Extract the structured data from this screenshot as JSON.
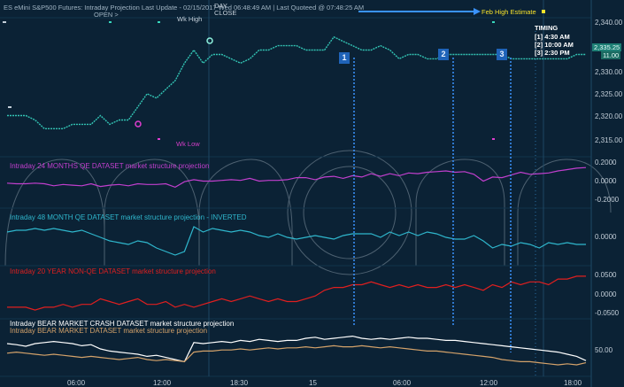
{
  "header": {
    "title": "ES eMini S&P500 Futures: Intraday Projection Last Update - 02/15/2017 Wed 06:48:49 AM | Last Quoteed @ 07:48:25 AM",
    "open_label": "OPEN >",
    "day_close_label": "DAY\nCLOSE",
    "wk_high_label": "Wk High",
    "wk_low_label": "Wk Low",
    "feb_high_label": "Feb High Estimate"
  },
  "timing": {
    "title": "TIMING",
    "items": [
      "[1] 4:30 AM",
      "[2] 10:00 AM",
      "[3] 2:30 PM"
    ]
  },
  "markers": [
    "1",
    "2",
    "3"
  ],
  "price_tags": {
    "last": "2,335.25",
    "change": "11.00"
  },
  "colors": {
    "background": "#0b2235",
    "price": "#33c4b4",
    "qe24": "#c23fce",
    "qe48": "#2fb7cd",
    "nonqe20": "#e01f1f",
    "bear_crash": "#ffffff",
    "bear_market": "#d4a26a",
    "timing_line": "#3a93ff",
    "arrow": "#3a93ff",
    "feb_high": "#f6e12a"
  },
  "chart_data": [
    {
      "type": "line",
      "title": "",
      "series": [
        {
          "values": [
            2321,
            2321,
            2321,
            2320,
            2318,
            2318,
            2318,
            2319,
            2319,
            2319,
            2321,
            2319,
            2320,
            2320,
            2323,
            2326,
            2325,
            2327,
            2329,
            2333,
            2336,
            2333,
            2335,
            2335,
            2334,
            2333,
            2334,
            2336,
            2336,
            2337,
            2337,
            2337,
            2336,
            2336,
            2336,
            2339,
            2338,
            2337,
            2336,
            2336,
            2337,
            2336,
            2334,
            2335,
            2335,
            2334,
            2334,
            2335,
            2335,
            2335,
            2335,
            2335,
            2335,
            2335,
            2334,
            2334,
            2334,
            2334,
            2334,
            2334,
            2334,
            2335,
            2335
          ]
        }
      ],
      "yticks": [
        "2,340.00",
        "2,335.00",
        "2,330.00",
        "2,325.00",
        "2,320.00",
        "2,315.00"
      ],
      "ylim": [
        2313,
        2343
      ]
    },
    {
      "type": "line",
      "title": "Intraday 24 MONTHS QE DATASET market structure projection",
      "series": [
        {
          "values": [
            -0.01,
            -0.02,
            -0.02,
            -0.01,
            -0.02,
            -0.05,
            -0.03,
            -0.04,
            -0.05,
            -0.02,
            -0.06,
            -0.04,
            -0.03,
            -0.05,
            -0.02,
            -0.03,
            -0.03,
            -0.02,
            -0.07,
            0.01,
            0.04,
            0.02,
            0.02,
            0.03,
            0.04,
            0.03,
            0.06,
            0.02,
            0.03,
            0.03,
            0.04,
            0.07,
            0.07,
            0.04,
            0.08,
            0.09,
            0.06,
            0.1,
            0.08,
            0.13,
            0.09,
            0.13,
            0.1,
            0.14,
            0.13,
            0.15,
            0.16,
            0.17,
            0.15,
            0.16,
            0.12,
            0.02,
            0.08,
            0.07,
            0.11,
            0.15,
            0.12,
            0.13,
            0.14,
            0.17,
            0.19,
            0.21,
            0.22
          ]
        }
      ],
      "yticks": [
        "0.2000",
        "0.0000",
        "-0.2000"
      ],
      "ylim": [
        -0.34,
        0.34
      ]
    },
    {
      "type": "line",
      "title": "Intraday 48 MONTH QE DATASET market structure projection - INVERTED",
      "series": [
        {
          "values": [
            0.03,
            0.04,
            0.04,
            0.05,
            0.04,
            0.05,
            0.04,
            0.03,
            0.04,
            0.02,
            0.0,
            -0.02,
            -0.03,
            -0.04,
            -0.02,
            -0.03,
            -0.06,
            -0.08,
            -0.1,
            -0.08,
            0.06,
            0.03,
            0.05,
            0.04,
            0.03,
            0.04,
            0.03,
            0.01,
            0.0,
            0.02,
            0.0,
            -0.01,
            0.0,
            0.01,
            0.0,
            -0.01,
            0.01,
            0.02,
            0.02,
            0.02,
            0.0,
            0.03,
            0.01,
            0.03,
            0.01,
            0.03,
            0.02,
            0.0,
            -0.01,
            -0.01,
            0.01,
            -0.02,
            -0.06,
            -0.04,
            -0.05,
            -0.03,
            -0.04,
            -0.06,
            -0.03,
            -0.04,
            -0.03,
            -0.04,
            -0.04
          ]
        }
      ],
      "yticks": [
        "0.0000"
      ],
      "ylim": [
        -0.14,
        0.14
      ]
    },
    {
      "type": "line",
      "title": "Intraday 20 YEAR NON-QE DATASET market structure  projection",
      "series": [
        {
          "values": [
            -0.05,
            -0.05,
            -0.05,
            -0.06,
            -0.05,
            -0.05,
            -0.04,
            -0.05,
            -0.04,
            -0.04,
            -0.02,
            -0.03,
            -0.04,
            -0.03,
            -0.02,
            -0.04,
            -0.04,
            -0.03,
            -0.05,
            -0.04,
            -0.05,
            -0.04,
            -0.03,
            -0.02,
            -0.03,
            -0.02,
            -0.01,
            -0.02,
            -0.03,
            -0.02,
            -0.03,
            -0.03,
            -0.02,
            -0.01,
            0.01,
            0.02,
            0.02,
            0.03,
            0.03,
            0.04,
            0.03,
            0.02,
            0.03,
            0.02,
            0.03,
            0.02,
            0.02,
            0.03,
            0.02,
            0.03,
            0.02,
            0.01,
            0.03,
            0.02,
            0.04,
            0.03,
            0.04,
            0.04,
            0.03,
            0.05,
            0.05,
            0.06,
            0.06
          ]
        }
      ],
      "yticks": [
        "0.0500",
        "0.0000",
        "-0.0500"
      ],
      "ylim": [
        -0.085,
        0.085
      ]
    },
    {
      "type": "line",
      "title": "Intraday BEAR MARKET CRASH  DATASET  market structure projection",
      "series": [
        {
          "values": [
            60,
            58,
            55,
            60,
            62,
            64,
            62,
            60,
            56,
            58,
            50,
            46,
            44,
            42,
            40,
            36,
            38,
            34,
            30,
            26,
            62,
            60,
            62,
            64,
            62,
            66,
            64,
            68,
            66,
            64,
            66,
            66,
            70,
            72,
            68,
            70,
            72,
            74,
            70,
            68,
            70,
            68,
            70,
            72,
            70,
            70,
            68,
            66,
            66,
            64,
            62,
            60,
            58,
            56,
            54,
            52,
            50,
            48,
            46,
            44,
            40,
            36,
            28
          ]
        },
        {
          "values": [
            42,
            44,
            42,
            40,
            38,
            40,
            38,
            36,
            34,
            36,
            34,
            32,
            30,
            32,
            34,
            30,
            28,
            30,
            28,
            26,
            44,
            46,
            46,
            48,
            48,
            50,
            48,
            50,
            52,
            50,
            52,
            52,
            54,
            52,
            54,
            56,
            54,
            54,
            56,
            54,
            52,
            54,
            52,
            50,
            48,
            46,
            46,
            44,
            42,
            40,
            38,
            36,
            34,
            30,
            28,
            26,
            26,
            24,
            22,
            20,
            22,
            20,
            24
          ]
        }
      ],
      "yticks": [
        "50.00"
      ],
      "ylim": [
        0,
        100
      ]
    }
  ],
  "legend_extra": "Intraday BEAR MARKET DATASET market structure projection",
  "x_axis": [
    "06:00",
    "12:00",
    "18:30",
    "15",
    "06:00",
    "12:00",
    "18:00"
  ]
}
